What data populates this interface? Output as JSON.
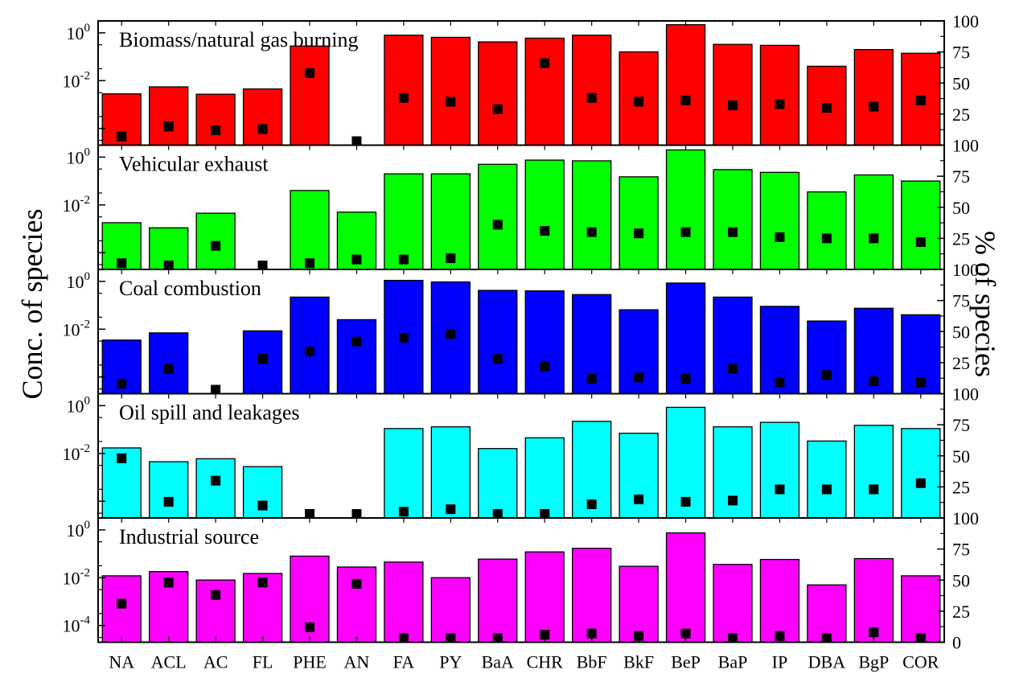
{
  "chart_data": {
    "type": "bar",
    "categories": [
      "NA",
      "ACL",
      "AC",
      "FL",
      "PHE",
      "AN",
      "FA",
      "PY",
      "BaA",
      "CHR",
      "BbF",
      "BkF",
      "BeP",
      "BaP",
      "IP",
      "DBA",
      "BgP",
      "COR"
    ],
    "ylabel_left": "Conc. of species",
    "ylabel_right": "% of species",
    "left_axis": {
      "scale": "log",
      "tick_labels": [
        "10-4",
        "10-2",
        "100"
      ]
    },
    "right_axis": {
      "scale": "linear",
      "tick_labels": [
        "0",
        "25",
        "50",
        "75",
        "100"
      ]
    },
    "panels": [
      {
        "name": "Biomass/natural gas burning",
        "color": "#ff0000",
        "bar_values": [
          0.0028,
          0.0055,
          0.0027,
          0.0045,
          0.28,
          null,
          0.8,
          0.65,
          0.42,
          0.6,
          0.8,
          0.16,
          2.2,
          0.33,
          0.3,
          0.04,
          0.2,
          0.14
        ],
        "percent_values": [
          7,
          15,
          12,
          13,
          58,
          0,
          38,
          35,
          29,
          66,
          38,
          35,
          36,
          32,
          33,
          30,
          31,
          36
        ]
      },
      {
        "name": "Vehicular exhaust",
        "color": "#00ff00",
        "bar_values": [
          0.0018,
          0.0011,
          0.0045,
          null,
          0.04,
          0.005,
          0.2,
          0.2,
          0.5,
          0.75,
          0.7,
          0.15,
          2.0,
          0.3,
          0.23,
          0.035,
          0.18,
          0.1
        ],
        "percent_values": [
          5,
          3,
          19,
          1,
          5,
          8,
          8,
          9,
          36,
          31,
          30,
          29,
          30,
          30,
          26,
          25,
          25,
          22
        ]
      },
      {
        "name": "Coal combustion",
        "color": "#0000ff",
        "bar_values": [
          0.0035,
          0.007,
          null,
          0.0085,
          0.22,
          0.025,
          1.1,
          0.95,
          0.42,
          0.4,
          0.28,
          0.065,
          0.85,
          0.22,
          0.09,
          0.022,
          0.075,
          0.04
        ],
        "percent_values": [
          8,
          20,
          0,
          28,
          34,
          42,
          45,
          48,
          28,
          22,
          12,
          13,
          12,
          20,
          9,
          15,
          10,
          9
        ]
      },
      {
        "name": "Oil spill and leakages",
        "color": "#00ffff",
        "bar_values": [
          0.017,
          0.0045,
          0.006,
          0.0028,
          null,
          null,
          0.11,
          0.13,
          0.016,
          0.045,
          0.22,
          0.07,
          0.85,
          0.13,
          0.2,
          0.033,
          0.15,
          0.11
        ],
        "percent_values": [
          48,
          13,
          30,
          10,
          1,
          1,
          5,
          7,
          2,
          3,
          11,
          15,
          13,
          14,
          23,
          23,
          23,
          28
        ]
      },
      {
        "name": "Industrial source",
        "color": "#ff00ff",
        "bar_values": [
          0.012,
          0.018,
          0.008,
          0.015,
          0.08,
          0.028,
          0.045,
          0.01,
          0.06,
          0.12,
          0.17,
          0.03,
          0.75,
          0.036,
          0.058,
          0.005,
          0.063,
          0.012
        ],
        "percent_values": [
          31,
          48,
          38,
          48,
          12,
          47,
          1,
          0,
          3,
          6,
          7,
          5,
          7,
          2,
          5,
          3,
          8,
          2
        ]
      }
    ]
  }
}
